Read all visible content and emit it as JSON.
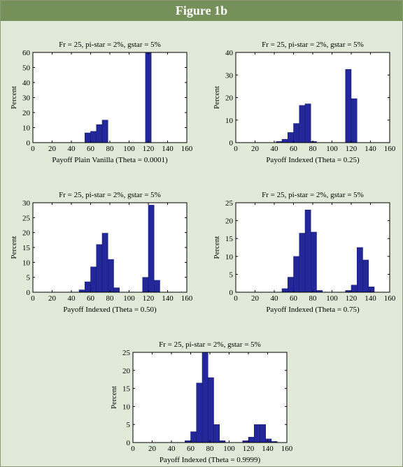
{
  "header": {
    "title": "Figure 1b"
  },
  "colors": {
    "bar": "#22279a",
    "header_bg": "#76905a",
    "page_bg": "#e1ead8"
  },
  "chart_data": [
    {
      "type": "bar",
      "title": "Fr = 25, pi-star = 2%, gstar = 5%",
      "xlabel": "Payoff Plain Vanilla (Theta = 0.0001)",
      "ylabel": "Percent",
      "xlim": [
        0,
        160
      ],
      "ylim": [
        0,
        60
      ],
      "xticks": [
        0,
        20,
        40,
        60,
        80,
        100,
        120,
        140,
        160
      ],
      "yticks": [
        0,
        10,
        20,
        30,
        40,
        50,
        60
      ],
      "bin_width": 6,
      "bins": [
        {
          "x": 57,
          "y": 6.5
        },
        {
          "x": 63,
          "y": 7.5
        },
        {
          "x": 69,
          "y": 12
        },
        {
          "x": 75,
          "y": 15
        },
        {
          "x": 120,
          "y": 60
        }
      ]
    },
    {
      "type": "bar",
      "title": "Fr = 25, pi-star = 2%, gstar = 5%",
      "xlabel": "Payoff Indexed (Theta = 0.25)",
      "ylabel": "Percent",
      "xlim": [
        0,
        160
      ],
      "ylim": [
        0,
        40
      ],
      "xticks": [
        0,
        20,
        40,
        60,
        80,
        100,
        120,
        140,
        160
      ],
      "yticks": [
        0,
        10,
        20,
        30,
        40
      ],
      "bin_width": 6,
      "bins": [
        {
          "x": 45,
          "y": 0.5
        },
        {
          "x": 51,
          "y": 1.5
        },
        {
          "x": 57,
          "y": 4.5
        },
        {
          "x": 63,
          "y": 8.5
        },
        {
          "x": 69,
          "y": 16.5
        },
        {
          "x": 75,
          "y": 17.2
        },
        {
          "x": 81,
          "y": 0.5
        },
        {
          "x": 117,
          "y": 32.5
        },
        {
          "x": 123,
          "y": 19.5
        }
      ]
    },
    {
      "type": "bar",
      "title": "Fr = 25, pi-star = 2%, gstar = 5%",
      "xlabel": "Payoff Indexed (Theta = 0.50)",
      "ylabel": "Percent",
      "xlim": [
        0,
        160
      ],
      "ylim": [
        0,
        30
      ],
      "xticks": [
        0,
        20,
        40,
        60,
        80,
        100,
        120,
        140,
        160
      ],
      "yticks": [
        0,
        5,
        10,
        15,
        20,
        25,
        30
      ],
      "bin_width": 6,
      "bins": [
        {
          "x": 51,
          "y": 0.8
        },
        {
          "x": 57,
          "y": 3.5
        },
        {
          "x": 63,
          "y": 8.5
        },
        {
          "x": 69,
          "y": 16
        },
        {
          "x": 75,
          "y": 19.8
        },
        {
          "x": 81,
          "y": 11
        },
        {
          "x": 87,
          "y": 1.5
        },
        {
          "x": 117,
          "y": 5
        },
        {
          "x": 123,
          "y": 29.2
        },
        {
          "x": 129,
          "y": 4
        }
      ]
    },
    {
      "type": "bar",
      "title": "Fr = 25, pi-star = 2%, gstar = 5%",
      "xlabel": "Payoff Indexed (Theta = 0.75)",
      "ylabel": "Percent",
      "xlim": [
        0,
        160
      ],
      "ylim": [
        0,
        25
      ],
      "xticks": [
        0,
        20,
        40,
        60,
        80,
        100,
        120,
        140,
        160
      ],
      "yticks": [
        0,
        5,
        10,
        15,
        20,
        25
      ],
      "bin_width": 6,
      "bins": [
        {
          "x": 51,
          "y": 1
        },
        {
          "x": 57,
          "y": 4.2
        },
        {
          "x": 63,
          "y": 10
        },
        {
          "x": 69,
          "y": 16.5
        },
        {
          "x": 75,
          "y": 23
        },
        {
          "x": 81,
          "y": 16.8
        },
        {
          "x": 87,
          "y": 0.5
        },
        {
          "x": 117,
          "y": 0.5
        },
        {
          "x": 123,
          "y": 2
        },
        {
          "x": 129,
          "y": 12.5
        },
        {
          "x": 135,
          "y": 9
        },
        {
          "x": 141,
          "y": 1.5
        }
      ]
    },
    {
      "type": "bar",
      "title": "Fr = 25, pi-star = 2%, gstar = 5%",
      "xlabel": "Payoff Indexed (Theta = 0.9999)",
      "ylabel": "Percent",
      "xlim": [
        0,
        160
      ],
      "ylim": [
        0,
        25
      ],
      "xticks": [
        0,
        20,
        40,
        60,
        80,
        100,
        120,
        140,
        160
      ],
      "yticks": [
        0,
        5,
        10,
        15,
        20,
        25
      ],
      "bin_width": 6,
      "bins": [
        {
          "x": 57,
          "y": 0.5
        },
        {
          "x": 63,
          "y": 3
        },
        {
          "x": 69,
          "y": 16.5
        },
        {
          "x": 75,
          "y": 25
        },
        {
          "x": 81,
          "y": 18
        },
        {
          "x": 87,
          "y": 5
        },
        {
          "x": 93,
          "y": 0.5
        },
        {
          "x": 117,
          "y": 0.5
        },
        {
          "x": 123,
          "y": 1.5
        },
        {
          "x": 129,
          "y": 5
        },
        {
          "x": 135,
          "y": 5
        },
        {
          "x": 141,
          "y": 1
        },
        {
          "x": 147,
          "y": 0.3
        }
      ]
    }
  ]
}
